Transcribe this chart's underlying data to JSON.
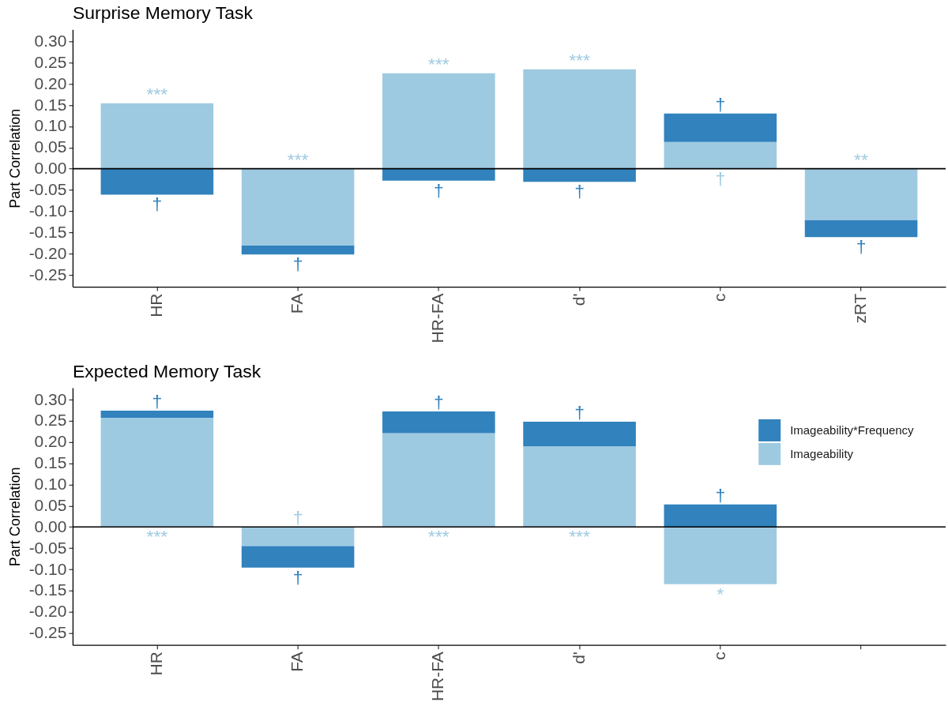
{
  "chart_data": [
    {
      "type": "bar",
      "title": "Surprise Memory Task",
      "ylabel": "Part Correlation",
      "categories": [
        "HR",
        "FA",
        "HR-FA",
        "d'",
        "c",
        "zRT"
      ],
      "stacked": true,
      "series": [
        {
          "color": "#9ecae1",
          "values": [
            0.154,
            -0.181,
            0.225,
            0.234,
            0.063,
            -0.121
          ],
          "value_labels": [
            "***",
            "***",
            "***",
            "***",
            "†",
            "**"
          ]
        },
        {
          "color": "#3182bd",
          "values": [
            -0.061,
            -0.021,
            -0.028,
            -0.031,
            0.067,
            -0.04
          ],
          "value_labels": [
            "†",
            "†",
            "†",
            "†",
            "†",
            "†"
          ]
        }
      ],
      "ylim": [
        -0.278,
        0.328
      ],
      "yticks": [
        {
          "value": 0.3,
          "label": "0.30"
        },
        0.25,
        {
          "value": 0.2,
          "label": "0.20"
        },
        0.15,
        {
          "value": 0.1,
          "label": "0.10"
        },
        0.05,
        {
          "value": 0,
          "label": "0.00"
        },
        -0.05,
        {
          "value": -0.1,
          "label": "-0.10"
        },
        -0.15,
        {
          "value": -0.2,
          "label": "-0.20"
        },
        -0.25
      ],
      "ref_lines": [
        {
          "axis": "y",
          "value": 0,
          "color": "#000000"
        }
      ]
    },
    {
      "type": "bar",
      "title": "Expected Memory Task",
      "ylabel": "Part Correlation",
      "categories": [
        "HR",
        "FA",
        "HR-FA",
        "d'",
        "c",
        null
      ],
      "stacked": true,
      "series": [
        {
          "name": "Imageability",
          "color": "#9ecae1",
          "values": [
            0.257,
            -0.045,
            0.221,
            0.19,
            -0.135,
            null
          ],
          "value_labels": [
            "***",
            "†",
            "***",
            "***",
            "*",
            null
          ]
        },
        {
          "name": "Imageability*Frequency",
          "color": "#3182bd",
          "values": [
            0.017,
            -0.051,
            0.051,
            0.058,
            0.053,
            null
          ],
          "value_labels": [
            "†",
            "†",
            "†",
            "†",
            "†",
            null
          ]
        }
      ],
      "ylim": [
        -0.278,
        0.328
      ],
      "yticks": [
        {
          "value": 0.3,
          "label": "0.30"
        },
        0.25,
        {
          "value": 0.2,
          "label": "0.20"
        },
        0.15,
        {
          "value": 0.1,
          "label": "0.10"
        },
        0.05,
        {
          "value": 0,
          "label": "0.00"
        },
        -0.05,
        {
          "value": -0.1,
          "label": "-0.10"
        },
        -0.15,
        {
          "value": -0.2,
          "label": "-0.20"
        },
        -0.25
      ],
      "ref_lines": [
        {
          "axis": "y",
          "value": 0,
          "color": "#000000"
        }
      ],
      "legend": "top right"
    }
  ]
}
